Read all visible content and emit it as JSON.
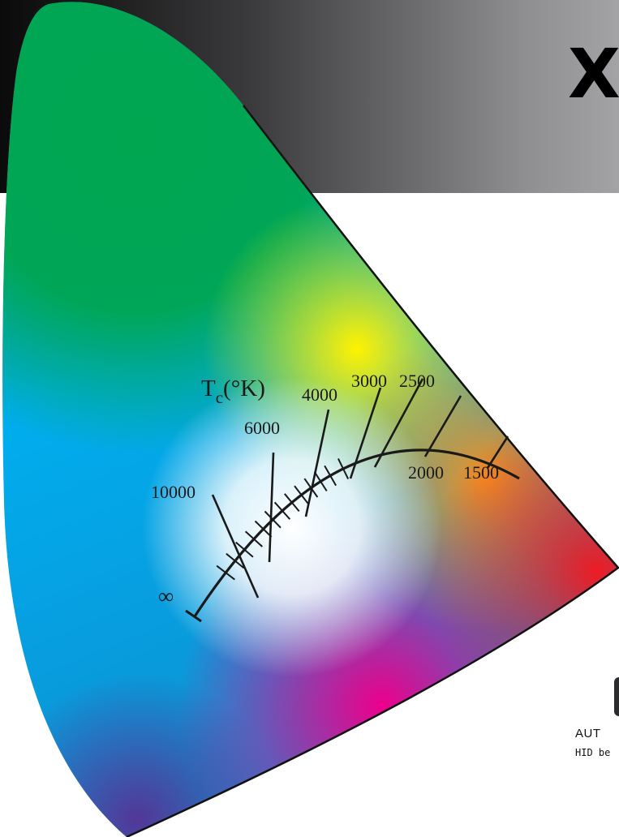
{
  "page": {
    "brand_fragment": "X",
    "caption_line_1": "AUT",
    "caption_line_2": "HID be"
  },
  "diagram": {
    "axis_label_main": "T",
    "axis_label_sub": "c",
    "axis_label_unit": "(°K)",
    "temperature_labels": [
      "∞",
      "10000",
      "6000",
      "4000",
      "3000",
      "2500",
      "2000",
      "1500"
    ],
    "colors": {
      "green": "#00a650",
      "cyan_blue": "#00aeef",
      "yellow": "#fff200",
      "orange": "#f7941d",
      "red": "#ed1c24",
      "magenta": "#ec008c",
      "white_point": "#ffffff",
      "locus_line": "#1a1a1a"
    }
  }
}
